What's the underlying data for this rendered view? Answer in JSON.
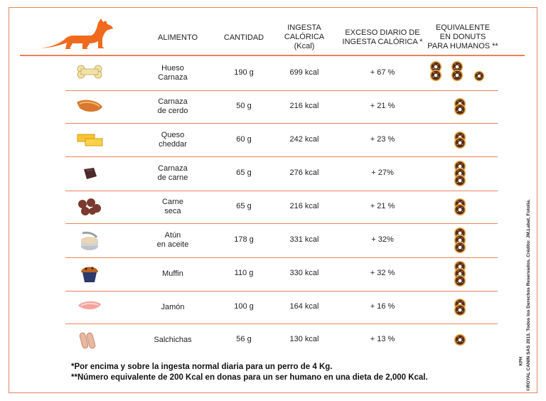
{
  "headers": {
    "alimento": "ALIMENTO",
    "cantidad": "CANTIDAD",
    "ingesta": [
      "INGESTA",
      "CALÓRICA",
      "(Kcal)"
    ],
    "exceso": [
      "EXCESO DIARIO DE",
      "INGESTA CALÓRICA *"
    ],
    "equivalente": [
      "EQUIVALENTE",
      "EN DONUTS",
      "PARA HUMANOS **"
    ]
  },
  "rows": [
    {
      "food": [
        "Hueso",
        "Carnaza"
      ],
      "qty": "190  g",
      "kcal": "699 kcal",
      "excess": "+ 67 %",
      "donuts": 3.5,
      "icon": "bone-icon"
    },
    {
      "food": [
        "Carnaza",
        "de cerdo"
      ],
      "qty": "50  g",
      "kcal": "216 kcal",
      "excess": "+ 21 %",
      "donuts": 1,
      "icon": "pork-rawhide-icon"
    },
    {
      "food": [
        "Queso",
        "cheddar"
      ],
      "qty": "60  g",
      "kcal": "242 kcal",
      "excess": "+ 23 %",
      "donuts": 1,
      "icon": "cheese-icon"
    },
    {
      "food": [
        "Carnaza",
        "de carne"
      ],
      "qty": "65  g",
      "kcal": "276 kcal",
      "excess": "+ 27%",
      "donuts": 1.5,
      "icon": "beef-rawhide-icon"
    },
    {
      "food": [
        "Carne",
        "seca"
      ],
      "qty": "65  g",
      "kcal": "216 kcal",
      "excess": "+ 21 %",
      "donuts": 1,
      "icon": "jerky-icon"
    },
    {
      "food": [
        "Atún",
        "en aceite"
      ],
      "qty": "178  g",
      "kcal": "331 kcal",
      "excess": "+ 32%",
      "donuts": 1.5,
      "icon": "tuna-can-icon"
    },
    {
      "food": [
        "Muffin"
      ],
      "qty": "110  g",
      "kcal": "330 kcal",
      "excess": "+ 32 %",
      "donuts": 1.5,
      "icon": "muffin-icon"
    },
    {
      "food": [
        "Jamón"
      ],
      "qty": "100  g",
      "kcal": "164 kcal",
      "excess": "+ 16 %",
      "donuts": 1,
      "icon": "ham-icon"
    },
    {
      "food": [
        "Salchichas"
      ],
      "qty": "56  g",
      "kcal": "130 kcal",
      "excess": "+ 13 %",
      "donuts": 0.7,
      "icon": "sausage-icon"
    }
  ],
  "footnotes": [
    "*Por encima y sobre la ingesta normal diaria para un perro de 4 Kg.",
    "**Número equivalente de 200 Kcal en donas para un ser humano en una dieta de 2,000 Kcal."
  ],
  "credit": "©ROYAL CANIN SAS 2013. Todos los Derechos Reservados. Crédito: JM.Labat, Fotolia.",
  "brand_mark": "KPH",
  "colors": {
    "accent": "#e8825a",
    "dog": "#f06a1e",
    "donut_dough": "#e7a84a",
    "donut_glaze": "#5a2d14"
  }
}
